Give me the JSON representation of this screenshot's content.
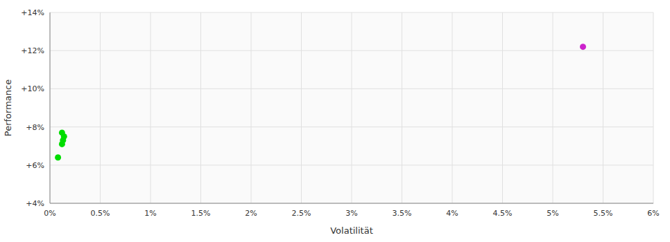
{
  "chart_data": {
    "type": "scatter",
    "xlabel": "Volatilität",
    "ylabel": "Performance",
    "xlim": [
      0,
      0.06
    ],
    "ylim": [
      0.04,
      0.14
    ],
    "xticks": [
      {
        "value": 0,
        "label": "0%"
      },
      {
        "value": 0.005,
        "label": "0.5%"
      },
      {
        "value": 0.01,
        "label": "1%"
      },
      {
        "value": 0.015,
        "label": "1.5%"
      },
      {
        "value": 0.02,
        "label": "2%"
      },
      {
        "value": 0.025,
        "label": "2.5%"
      },
      {
        "value": 0.03,
        "label": "3%"
      },
      {
        "value": 0.035,
        "label": "3.5%"
      },
      {
        "value": 0.04,
        "label": "4%"
      },
      {
        "value": 0.045,
        "label": "4.5%"
      },
      {
        "value": 0.05,
        "label": "5%"
      },
      {
        "value": 0.055,
        "label": "5.5%"
      },
      {
        "value": 0.06,
        "label": "6%"
      }
    ],
    "yticks": [
      {
        "value": 0.04,
        "label": "+4%"
      },
      {
        "value": 0.06,
        "label": "+6%"
      },
      {
        "value": 0.08,
        "label": "+8%"
      },
      {
        "value": 0.1,
        "label": "+10%"
      },
      {
        "value": 0.12,
        "label": "+12%"
      },
      {
        "value": 0.14,
        "label": "+14%"
      }
    ],
    "grid": true,
    "series": [
      {
        "color": "#00dd00",
        "x": [
          0.0012,
          0.0014,
          0.0013,
          0.0012,
          0.0008
        ],
        "values": [
          0.077,
          0.075,
          0.073,
          0.071,
          0.064
        ]
      },
      {
        "color": "#cc22cc",
        "x": [
          0.053
        ],
        "values": [
          0.122
        ]
      }
    ]
  }
}
